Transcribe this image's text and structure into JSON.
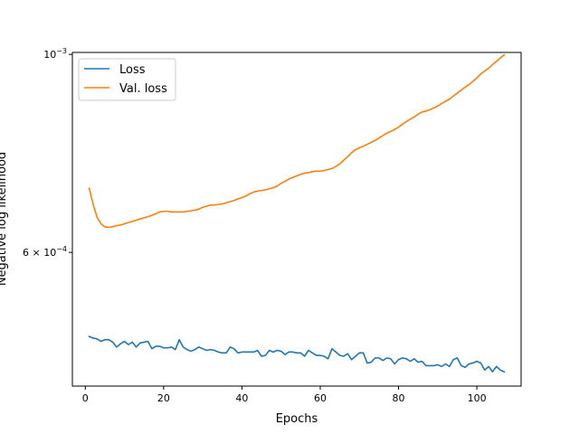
{
  "chart_data": {
    "type": "line",
    "title": "",
    "xlabel": "Epochs",
    "ylabel": "Negative log likelihood",
    "yscale": "log",
    "xlim": [
      -3.3,
      111.3
    ],
    "ylim": [
      0.000425,
      0.001005
    ],
    "grid": false,
    "legend_position": "top-left",
    "x_ticks": [
      {
        "value": 0,
        "label": "0"
      },
      {
        "value": 20,
        "label": "20"
      },
      {
        "value": 40,
        "label": "40"
      },
      {
        "value": 60,
        "label": "60"
      },
      {
        "value": 80,
        "label": "80"
      },
      {
        "value": 100,
        "label": "100"
      }
    ],
    "y_ticks": [
      {
        "value": 0.001,
        "base": "10",
        "exp": "−3"
      },
      {
        "value": 0.0006,
        "mant": "6",
        "times": " × ",
        "base": "10",
        "exp": "−4"
      }
    ],
    "x": [
      1,
      2,
      3,
      4,
      5,
      6,
      7,
      8,
      9,
      10,
      11,
      12,
      13,
      14,
      15,
      16,
      17,
      18,
      19,
      20,
      21,
      22,
      23,
      24,
      25,
      26,
      27,
      28,
      29,
      30,
      31,
      32,
      33,
      34,
      35,
      36,
      37,
      38,
      39,
      40,
      41,
      42,
      43,
      44,
      45,
      46,
      47,
      48,
      49,
      50,
      51,
      52,
      53,
      54,
      55,
      56,
      57,
      58,
      59,
      60,
      61,
      62,
      63,
      64,
      65,
      66,
      67,
      68,
      69,
      70,
      71,
      72,
      73,
      74,
      75,
      76,
      77,
      78,
      79,
      80,
      81,
      82,
      83,
      84,
      85,
      86,
      87,
      88,
      89,
      90,
      91,
      92,
      93,
      94,
      95,
      96,
      97,
      98,
      99,
      100,
      101,
      102,
      103,
      104,
      105,
      106,
      107
    ],
    "series": [
      {
        "name": "Loss",
        "color": "#1f77b4",
        "values": [
          0.000483,
          0.000481,
          0.00048,
          0.000477,
          0.000479,
          0.000479,
          0.000476,
          0.00047,
          0.000474,
          0.000477,
          0.000473,
          0.000476,
          0.00047,
          0.000475,
          0.000476,
          0.000477,
          0.000468,
          0.000471,
          0.000471,
          0.000469,
          0.000469,
          0.00047,
          0.000467,
          0.000479,
          0.00047,
          0.000467,
          0.000465,
          0.000467,
          0.00047,
          0.000468,
          0.000466,
          0.000467,
          0.000466,
          0.000464,
          0.000463,
          0.000463,
          0.00047,
          0.000468,
          0.000463,
          0.000464,
          0.000464,
          0.000464,
          0.000464,
          0.000466,
          0.000459,
          0.00046,
          0.000466,
          0.000464,
          0.000466,
          0.000465,
          0.000461,
          0.000464,
          0.000464,
          0.000463,
          0.000463,
          0.000459,
          0.000466,
          0.000463,
          0.00046,
          0.00046,
          0.000459,
          0.000456,
          0.000468,
          0.000464,
          0.00046,
          0.000459,
          0.000462,
          0.000455,
          0.000459,
          0.000463,
          0.000463,
          0.000451,
          0.000452,
          0.000457,
          0.000457,
          0.000454,
          0.000457,
          0.000456,
          0.00045,
          0.000455,
          0.000457,
          0.000456,
          0.000453,
          0.000456,
          0.000452,
          0.000453,
          0.000448,
          0.000448,
          0.000448,
          0.000449,
          0.000447,
          0.00045,
          0.000447,
          0.000455,
          0.000457,
          0.000448,
          0.000446,
          0.00045,
          0.000451,
          0.000453,
          0.000451,
          0.000443,
          0.000447,
          0.000441,
          0.000447,
          0.000443,
          0.000441
        ]
      },
      {
        "name": "Val. loss",
        "color": "#ff7f0e",
        "values": [
          0.000708,
          0.000679,
          0.000657,
          0.000646,
          0.000641,
          0.00064,
          0.000641,
          0.000643,
          0.000644,
          0.000646,
          0.000648,
          0.00065,
          0.000652,
          0.000654,
          0.000656,
          0.000658,
          0.00066,
          0.000663,
          0.000666,
          0.000667,
          0.000667,
          0.000666,
          0.000666,
          0.000666,
          0.000666,
          0.000667,
          0.000668,
          0.000669,
          0.000671,
          0.000674,
          0.000676,
          0.000678,
          0.000678,
          0.000679,
          0.00068,
          0.000682,
          0.000684,
          0.000686,
          0.000689,
          0.000691,
          0.000694,
          0.000698,
          0.000701,
          0.000703,
          0.000704,
          0.000705,
          0.000707,
          0.000709,
          0.000712,
          0.000717,
          0.000721,
          0.000725,
          0.000728,
          0.000731,
          0.000734,
          0.000736,
          0.000737,
          0.000739,
          0.00074,
          0.00074,
          0.000741,
          0.000743,
          0.000745,
          0.000749,
          0.000754,
          0.000761,
          0.000768,
          0.000776,
          0.000782,
          0.000786,
          0.000789,
          0.000793,
          0.000797,
          0.000801,
          0.000806,
          0.000811,
          0.000816,
          0.00082,
          0.000824,
          0.000829,
          0.000835,
          0.000841,
          0.000846,
          0.000851,
          0.000857,
          0.000862,
          0.000864,
          0.000867,
          0.000871,
          0.000875,
          0.000881,
          0.000886,
          0.000891,
          0.000898,
          0.000905,
          0.000912,
          0.000919,
          0.000925,
          0.000933,
          0.000941,
          0.000951,
          0.000958,
          0.000965,
          0.000974,
          0.000982,
          0.000991,
          0.000999
        ]
      }
    ]
  }
}
